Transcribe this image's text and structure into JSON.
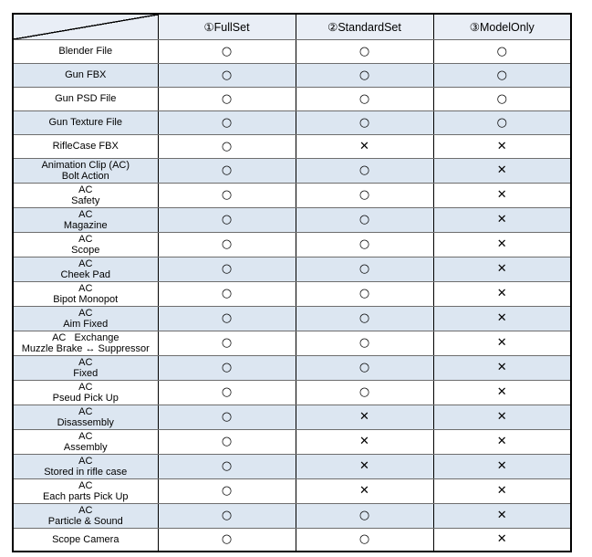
{
  "style": {
    "header_bg": "#e9eef6",
    "alt_row_bg": "#dce6f1",
    "row_bg": "#ffffff",
    "outer_border": "#000000",
    "grid_horizontal": "#6e6e6e",
    "grid_vertical": "#000000",
    "text_color": "#000000"
  },
  "chart_data": {
    "type": "table",
    "title": "",
    "corner_label": "",
    "legend_position": "none",
    "grid": true,
    "columns": [
      "①FullSet",
      "②StandardSet",
      "③ModelOnly"
    ],
    "marks": {
      "included": "○",
      "excluded": "✕"
    },
    "rows": [
      {
        "label": "Blender File",
        "values": [
          "○",
          "○",
          "○"
        ]
      },
      {
        "label": "Gun FBX",
        "values": [
          "○",
          "○",
          "○"
        ]
      },
      {
        "label": "Gun PSD File",
        "values": [
          "○",
          "○",
          "○"
        ]
      },
      {
        "label": "Gun Texture File",
        "values": [
          "○",
          "○",
          "○"
        ]
      },
      {
        "label": "RifleCase FBX",
        "values": [
          "○",
          "✕",
          "✕"
        ]
      },
      {
        "label": "Animation Clip (AC)\nBolt Action",
        "values": [
          "○",
          "○",
          "✕"
        ]
      },
      {
        "label": "AC\nSafety",
        "values": [
          "○",
          "○",
          "✕"
        ]
      },
      {
        "label": "AC\nMagazine",
        "values": [
          "○",
          "○",
          "✕"
        ]
      },
      {
        "label": "AC\nScope",
        "values": [
          "○",
          "○",
          "✕"
        ]
      },
      {
        "label": "AC\nCheek Pad",
        "values": [
          "○",
          "○",
          "✕"
        ]
      },
      {
        "label": "AC\nBipot Monopot",
        "values": [
          "○",
          "○",
          "✕"
        ]
      },
      {
        "label": "AC\nAim Fixed",
        "values": [
          "○",
          "○",
          "✕"
        ]
      },
      {
        "label": "AC   Exchange\nMuzzle Brake ↔ Suppressor",
        "values": [
          "○",
          "○",
          "✕"
        ]
      },
      {
        "label": "AC\nFixed",
        "values": [
          "○",
          "○",
          "✕"
        ]
      },
      {
        "label": "AC\nPseud Pick Up",
        "values": [
          "○",
          "○",
          "✕"
        ]
      },
      {
        "label": "AC\nDisassembly",
        "values": [
          "○",
          "✕",
          "✕"
        ]
      },
      {
        "label": "AC\nAssembly",
        "values": [
          "○",
          "✕",
          "✕"
        ]
      },
      {
        "label": "AC\nStored in rifle case",
        "values": [
          "○",
          "✕",
          "✕"
        ]
      },
      {
        "label": "AC\nEach parts Pick Up",
        "values": [
          "○",
          "✕",
          "✕"
        ]
      },
      {
        "label": "AC\nParticle & Sound",
        "values": [
          "○",
          "○",
          "✕"
        ]
      },
      {
        "label": "Scope Camera",
        "values": [
          "○",
          "○",
          "✕"
        ]
      }
    ]
  }
}
